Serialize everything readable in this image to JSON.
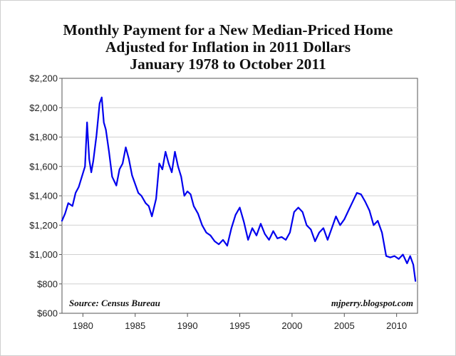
{
  "chart_data": {
    "type": "line",
    "title": [
      "Monthly Payment for a New Median-Priced Home",
      "Adjusted for Inflation in 2011 Dollars",
      "January 1978 to October 2011"
    ],
    "xlabel": "",
    "ylabel": "",
    "xlim": [
      1978,
      2012
    ],
    "ylim": [
      600,
      2200
    ],
    "x_ticks": [
      1980,
      1985,
      1990,
      1995,
      2000,
      2005,
      2010
    ],
    "x_tick_labels": [
      "1980",
      "1985",
      "1990",
      "1995",
      "2000",
      "2005",
      "2010"
    ],
    "y_ticks": [
      600,
      800,
      1000,
      1200,
      1400,
      1600,
      1800,
      2000,
      2200
    ],
    "y_tick_labels": [
      "$600",
      "$800",
      "$1,000",
      "$1,200",
      "$1,400",
      "$1,600",
      "$1,800",
      "$2,000",
      "$2,200"
    ],
    "grid": "horizontal",
    "line_color": "#0000ee",
    "source_note": "Source: Census Bureau",
    "credit_note": "mjperry.blogspot.com",
    "series": [
      {
        "x": [
          1978.0,
          1978.3,
          1978.6,
          1979.0,
          1979.3,
          1979.6,
          1979.9,
          1980.2,
          1980.4,
          1980.6,
          1980.8,
          1981.0,
          1981.3,
          1981.6,
          1981.8,
          1982.0,
          1982.2,
          1982.5,
          1982.8,
          1983.2,
          1983.5,
          1983.8,
          1984.1,
          1984.4,
          1984.7,
          1985.0,
          1985.3,
          1985.6,
          1986.0,
          1986.3,
          1986.6,
          1987.0,
          1987.3,
          1987.6,
          1987.9,
          1988.2,
          1988.5,
          1988.8,
          1989.1,
          1989.4,
          1989.7,
          1990.0,
          1990.3,
          1990.6,
          1991.0,
          1991.4,
          1991.8,
          1992.2,
          1992.6,
          1993.0,
          1993.4,
          1993.8,
          1994.2,
          1994.6,
          1995.0,
          1995.4,
          1995.8,
          1996.2,
          1996.6,
          1997.0,
          1997.4,
          1997.8,
          1998.2,
          1998.6,
          1999.0,
          1999.4,
          1999.8,
          2000.2,
          2000.6,
          2001.0,
          2001.4,
          2001.8,
          2002.2,
          2002.6,
          2003.0,
          2003.4,
          2003.8,
          2004.2,
          2004.6,
          2005.0,
          2005.4,
          2005.8,
          2006.2,
          2006.6,
          2007.0,
          2007.4,
          2007.8,
          2008.2,
          2008.6,
          2009.0,
          2009.4,
          2009.8,
          2010.2,
          2010.6,
          2011.0,
          2011.3,
          2011.6,
          2011.8
        ],
        "y": [
          1230,
          1280,
          1350,
          1330,
          1420,
          1460,
          1530,
          1600,
          1900,
          1650,
          1560,
          1640,
          1810,
          2030,
          2070,
          1900,
          1850,
          1700,
          1530,
          1470,
          1580,
          1620,
          1730,
          1650,
          1540,
          1480,
          1420,
          1400,
          1350,
          1330,
          1260,
          1380,
          1620,
          1580,
          1700,
          1620,
          1560,
          1700,
          1600,
          1530,
          1400,
          1430,
          1410,
          1330,
          1280,
          1200,
          1150,
          1130,
          1090,
          1070,
          1100,
          1060,
          1180,
          1270,
          1320,
          1220,
          1100,
          1180,
          1130,
          1210,
          1140,
          1100,
          1160,
          1110,
          1120,
          1100,
          1150,
          1290,
          1320,
          1290,
          1200,
          1170,
          1090,
          1150,
          1180,
          1100,
          1180,
          1260,
          1200,
          1240,
          1300,
          1360,
          1420,
          1410,
          1360,
          1300,
          1200,
          1230,
          1150,
          990,
          980,
          990,
          970,
          1000,
          940,
          990,
          930,
          820
        ]
      }
    ]
  }
}
